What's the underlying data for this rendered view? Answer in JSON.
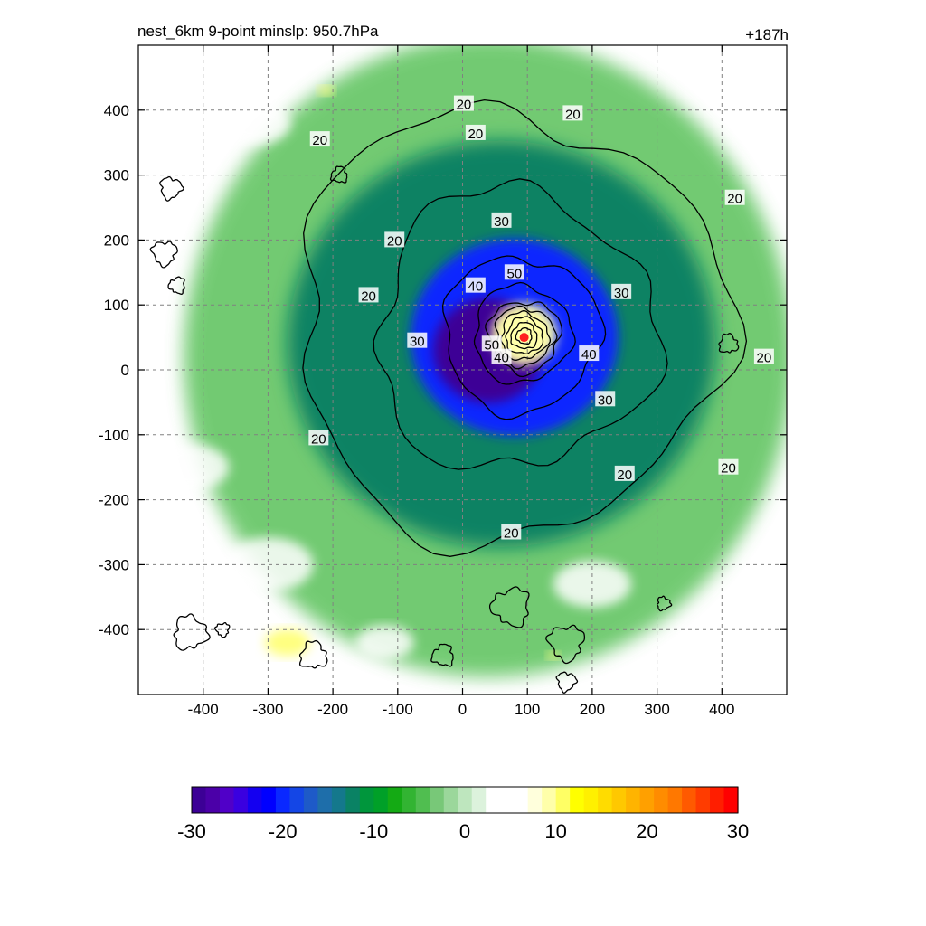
{
  "chart_data": {
    "type": "heatmap",
    "title_left": "nest_6km  9-point minslp: 950.7hPa",
    "title_right": "+187h",
    "xlim": [
      -500,
      500
    ],
    "ylim": [
      -500,
      500
    ],
    "xticks": [
      -400,
      -300,
      -200,
      -100,
      0,
      100,
      200,
      300,
      400
    ],
    "yticks": [
      400,
      300,
      200,
      100,
      0,
      -100,
      -200,
      -300,
      -400
    ],
    "grid": true,
    "center_marker": {
      "x": 95,
      "y": 50,
      "color": "#ff2020"
    },
    "colorbar": {
      "range": [
        -30,
        30
      ],
      "ticks": [
        -30,
        -20,
        -10,
        0,
        10,
        20,
        30
      ],
      "colors": [
        "#3c0096",
        "#4b00a8",
        "#5000c8",
        "#3a00e0",
        "#1400f0",
        "#0000ff",
        "#0a28ff",
        "#1446e6",
        "#1e5ac8",
        "#1e6eaa",
        "#14788c",
        "#0a8264",
        "#00963c",
        "#00a028",
        "#14aa14",
        "#32b432",
        "#50be50",
        "#78c878",
        "#9bd79b",
        "#bee6be",
        "#dcf2dc",
        "#ffffff",
        "#ffffff",
        "#ffffff",
        "#ffffdc",
        "#ffffaa",
        "#ffff64",
        "#ffff00",
        "#fff000",
        "#ffdc00",
        "#ffc800",
        "#ffb400",
        "#ffa000",
        "#ff8c00",
        "#ff7800",
        "#ff5a00",
        "#ff3c00",
        "#ff1e00",
        "#ff0000"
      ]
    },
    "contour_labels": [
      {
        "text": "20",
        "x": 170,
        "y": 395
      },
      {
        "text": "20",
        "x": 420,
        "y": 265
      },
      {
        "text": "20",
        "x": 465,
        "y": 20
      },
      {
        "text": "20",
        "x": 410,
        "y": -150
      },
      {
        "text": "20",
        "x": 250,
        "y": -160
      },
      {
        "text": "20",
        "x": 75,
        "y": -250
      },
      {
        "text": "20",
        "x": -222,
        "y": -105
      },
      {
        "text": "20",
        "x": -145,
        "y": 115
      },
      {
        "text": "20",
        "x": -105,
        "y": 200
      },
      {
        "text": "20",
        "x": -220,
        "y": 355
      },
      {
        "text": "20",
        "x": 2,
        "y": 410
      },
      {
        "text": "20",
        "x": 20,
        "y": 365
      },
      {
        "text": "30",
        "x": 60,
        "y": 230
      },
      {
        "text": "30",
        "x": 245,
        "y": 120
      },
      {
        "text": "30",
        "x": -70,
        "y": 45
      },
      {
        "text": "30",
        "x": 220,
        "y": -45
      },
      {
        "text": "40",
        "x": 20,
        "y": 130
      },
      {
        "text": "40",
        "x": 195,
        "y": 25
      },
      {
        "text": "50",
        "x": 80,
        "y": 150
      },
      {
        "text": "50",
        "x": 45,
        "y": 40
      },
      {
        "text": "40",
        "x": 60,
        "y": 20
      }
    ],
    "fields": [
      {
        "name": "outer-green-ring",
        "cx": 40,
        "cy": 20,
        "r": 470,
        "value": -5
      },
      {
        "name": "main-green-ring",
        "cx": 60,
        "cy": 40,
        "r": 330,
        "value": -12
      },
      {
        "name": "inner-blue-ring",
        "cx": 80,
        "cy": 50,
        "r": 160,
        "value": -20
      },
      {
        "name": "purple-core",
        "cx": 40,
        "cy": 30,
        "r": 85,
        "value": -30
      },
      {
        "name": "eye-positive",
        "cx": 95,
        "cy": 55,
        "r": 50,
        "value": 10
      }
    ]
  }
}
